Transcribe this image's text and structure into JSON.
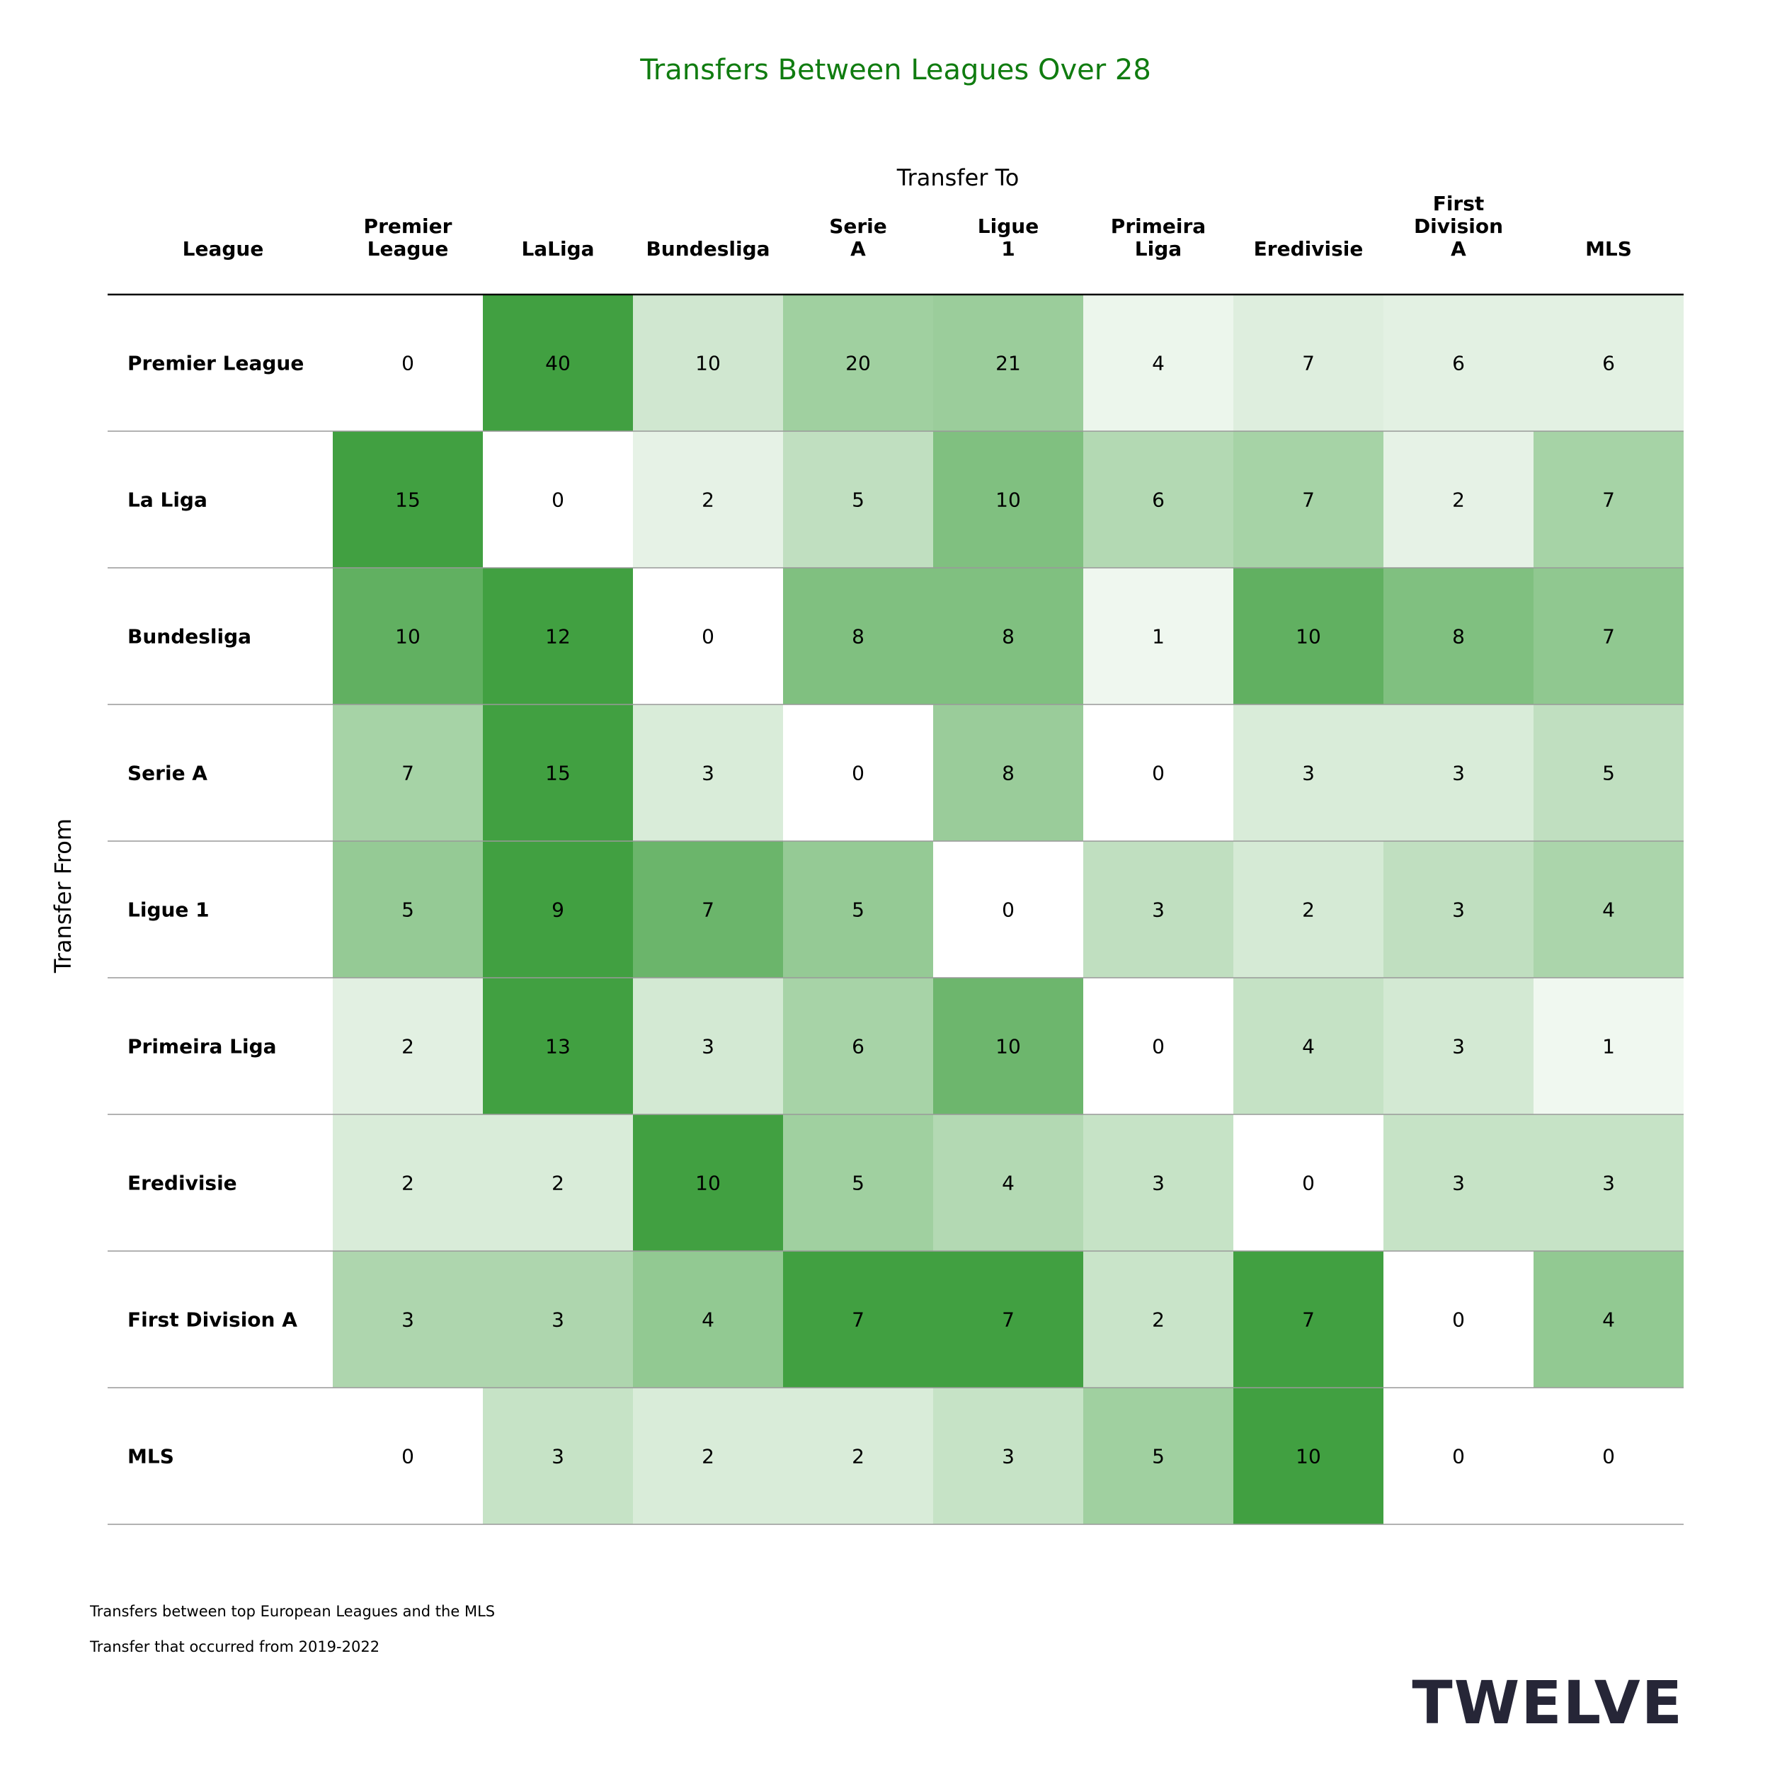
{
  "colors": {
    "title": "#107c10",
    "logo": "#262637",
    "header_rule": "#000000",
    "row_rule": "#999999",
    "scale_max": "#41a041",
    "scale_min": "#ffffff"
  },
  "footer": {
    "notes": [
      "Transfers between top European Leagues and the MLS",
      "Transfer that occurred from 2019-2022"
    ],
    "logo_text": "TWELVE"
  },
  "chart_data": {
    "type": "heatmap",
    "title": "Transfers Between Leagues Over 28",
    "col_axis_label": "Transfer To",
    "row_axis_label": "Transfer From",
    "corner_label": "League",
    "columns": [
      [
        "Premier",
        "League"
      ],
      [
        "LaLiga"
      ],
      [
        "Bundesliga"
      ],
      [
        "Serie",
        "A"
      ],
      [
        "Ligue",
        "1"
      ],
      [
        "Primeira",
        "Liga"
      ],
      [
        "Eredivisie"
      ],
      [
        "First",
        "Division",
        "A"
      ],
      [
        "MLS"
      ]
    ],
    "rows": [
      "Premier League",
      "La Liga",
      "Bundesliga",
      "Serie A",
      "Ligue 1",
      "Primeira Liga",
      "Eredivisie",
      "First Division A",
      "MLS"
    ],
    "values": [
      [
        0,
        40,
        10,
        20,
        21,
        4,
        7,
        6,
        6
      ],
      [
        15,
        0,
        2,
        5,
        10,
        6,
        7,
        2,
        7
      ],
      [
        10,
        12,
        0,
        8,
        8,
        1,
        10,
        8,
        7
      ],
      [
        7,
        15,
        3,
        0,
        8,
        0,
        3,
        3,
        5
      ],
      [
        5,
        9,
        7,
        5,
        0,
        3,
        2,
        3,
        4
      ],
      [
        2,
        13,
        3,
        6,
        10,
        0,
        4,
        3,
        1
      ],
      [
        2,
        2,
        10,
        5,
        4,
        3,
        0,
        3,
        3
      ],
      [
        3,
        3,
        4,
        7,
        7,
        2,
        7,
        0,
        4
      ],
      [
        0,
        3,
        2,
        2,
        3,
        5,
        10,
        0,
        0
      ]
    ],
    "color_scale": "row-normalized",
    "grid": false
  }
}
